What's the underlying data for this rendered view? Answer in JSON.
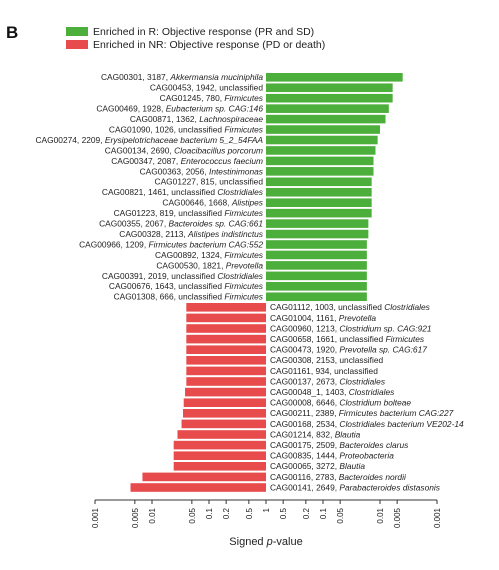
{
  "panel_label": "B",
  "colors": {
    "enriched_r": "#4caf3c",
    "enriched_nr": "#e84b4b",
    "axis": "#333333"
  },
  "chart_data": {
    "type": "bar",
    "orientation": "horizontal",
    "title": "",
    "xlabel_prefix": "Signed ",
    "xlabel_italic": "p",
    "xlabel_suffix": "-value",
    "xscale": "signed-log",
    "x_ticks": [
      "0.001",
      "0.005",
      "0.01",
      "0.05",
      "0.1",
      "0.2",
      "0.5",
      "1",
      "0.5",
      "0.2",
      "0.1",
      "0.05",
      "0.01",
      "0.005",
      "0.001"
    ],
    "legend_position": "top-left",
    "series": [
      {
        "name": "Enriched in R: Objective response (PR and SD)",
        "direction": "positive",
        "bars": [
          {
            "id": "CAG00301, 3187, ",
            "taxon": "Akkermansia muciniphila",
            "italic": true,
            "p": 0.004
          },
          {
            "id": "CAG00453, 1942, ",
            "taxon": "unclassified",
            "italic": false,
            "p": 0.006
          },
          {
            "id": "CAG01245, 780, ",
            "taxon": "Firmicutes",
            "italic": true,
            "p": 0.006
          },
          {
            "id": "CAG00469, 1928, ",
            "taxon": "Eubacterium sp. CAG:146",
            "italic": true,
            "p": 0.007
          },
          {
            "id": "CAG00871, 1362, ",
            "taxon": "Lachnospiraceae",
            "italic": true,
            "p": 0.008
          },
          {
            "id": "CAG01090, 1026, unclassified ",
            "taxon": "Firmicutes",
            "italic": true,
            "p": 0.01
          },
          {
            "id": "CAG00274, 2209, ",
            "taxon": "Erysipelotrichaceae bacterium 5_2_54FAA",
            "italic": true,
            "p": 0.011
          },
          {
            "id": "CAG00134, 2690, ",
            "taxon": "Cloacibacillus porcorum",
            "italic": true,
            "p": 0.012
          },
          {
            "id": "CAG00347, 2087, ",
            "taxon": "Enterococcus faecium",
            "italic": true,
            "p": 0.013
          },
          {
            "id": "CAG00363, 2056, ",
            "taxon": "Intestinimonas",
            "italic": true,
            "p": 0.013
          },
          {
            "id": "CAG01227, 815, ",
            "taxon": "unclassified",
            "italic": false,
            "p": 0.014
          },
          {
            "id": "CAG00821, 1461, unclassified ",
            "taxon": "Clostridiales",
            "italic": true,
            "p": 0.014
          },
          {
            "id": "CAG00646, 1668, ",
            "taxon": "Alistipes",
            "italic": true,
            "p": 0.014
          },
          {
            "id": "CAG01223, 819, unclassified ",
            "taxon": "Firmicutes",
            "italic": true,
            "p": 0.014
          },
          {
            "id": "CAG00355, 2067, ",
            "taxon": "Bacteroides sp. CAG:661",
            "italic": true,
            "p": 0.016
          },
          {
            "id": "CAG00328, 2113, ",
            "taxon": "Alistipes indistinctus",
            "italic": true,
            "p": 0.016
          },
          {
            "id": "CAG00966, 1209, ",
            "taxon": "Firmicutes bacterium CAG:552",
            "italic": true,
            "p": 0.017
          },
          {
            "id": "CAG00892, 1324, ",
            "taxon": "Firmicutes",
            "italic": true,
            "p": 0.017
          },
          {
            "id": "CAG00530, 1821, ",
            "taxon": "Prevotella",
            "italic": true,
            "p": 0.017
          },
          {
            "id": "CAG00391, 2019, unclassified ",
            "taxon": "Clostridiales",
            "italic": true,
            "p": 0.017
          },
          {
            "id": "CAG00676, 1643, unclassified ",
            "taxon": "Firmicutes",
            "italic": true,
            "p": 0.017
          },
          {
            "id": "CAG01308, 666, unclassified ",
            "taxon": "Firmicutes",
            "italic": true,
            "p": 0.017
          }
        ]
      },
      {
        "name": "Enriched in NR: Objective response (PD or death)",
        "direction": "negative",
        "bars": [
          {
            "id": "CAG01112, 1003, unclassified ",
            "taxon": "Clostridiales",
            "italic": true,
            "p": 0.04
          },
          {
            "id": "CAG01004, 1161, ",
            "taxon": "Prevotella",
            "italic": true,
            "p": 0.04
          },
          {
            "id": "CAG00960, 1213, ",
            "taxon": "Clostridium sp. CAG:921",
            "italic": true,
            "p": 0.04
          },
          {
            "id": "CAG00658, 1661, unclassified ",
            "taxon": "Firmicutes",
            "italic": true,
            "p": 0.04
          },
          {
            "id": "CAG00473, 1920, ",
            "taxon": "Prevotella sp. CAG:617",
            "italic": true,
            "p": 0.04
          },
          {
            "id": "CAG00308, 2153, ",
            "taxon": "unclassified",
            "italic": false,
            "p": 0.04
          },
          {
            "id": "CAG01161, 934, ",
            "taxon": "unclassified",
            "italic": false,
            "p": 0.04
          },
          {
            "id": "CAG00137, 2673, ",
            "taxon": "Clostridiales",
            "italic": true,
            "p": 0.04
          },
          {
            "id": "CAG00048_1, 1403, ",
            "taxon": "Clostridiales",
            "italic": true,
            "p": 0.038
          },
          {
            "id": "CAG00008, 6646, ",
            "taxon": "Clostridium bolteae",
            "italic": true,
            "p": 0.036
          },
          {
            "id": "CAG00211, 2389, ",
            "taxon": "Firmicutes bacterium CAG:227",
            "italic": true,
            "p": 0.035
          },
          {
            "id": "CAG00168, 2534, ",
            "taxon": "Clostridiales bacterium VE202-14",
            "italic": true,
            "p": 0.033
          },
          {
            "id": "CAG01214, 832, ",
            "taxon": "Blautia",
            "italic": true,
            "p": 0.028
          },
          {
            "id": "CAG00175, 2509, ",
            "taxon": "Bacteroides clarus",
            "italic": true,
            "p": 0.024
          },
          {
            "id": "CAG00835, 1444, ",
            "taxon": "Proteobacteria",
            "italic": true,
            "p": 0.024
          },
          {
            "id": "CAG00065, 3272, ",
            "taxon": "Blautia",
            "italic": true,
            "p": 0.024
          },
          {
            "id": "CAG00116, 2783, ",
            "taxon": "Bacteroides nordii",
            "italic": true,
            "p": 0.0068
          },
          {
            "id": "CAG00141, 2649, ",
            "taxon": "Parabacteroides distasonis",
            "italic": true,
            "p": 0.0042
          }
        ]
      }
    ]
  }
}
